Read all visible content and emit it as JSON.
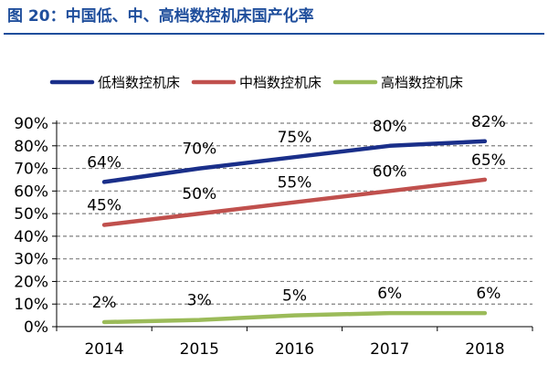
{
  "figure_title": "图 20：中国低、中、高档数控机床国产化率",
  "colors": {
    "title": "#1f4e9c",
    "grid": "#7f7f7f",
    "axis": "#000000"
  },
  "chart_data": {
    "type": "line",
    "title": "",
    "xlabel": "",
    "ylabel": "",
    "categories": [
      "2014",
      "2015",
      "2016",
      "2017",
      "2018"
    ],
    "ylim": [
      0,
      90
    ],
    "yticks": [
      0,
      10,
      20,
      30,
      40,
      50,
      60,
      70,
      80,
      90
    ],
    "ytick_labels": [
      "0%",
      "10%",
      "20%",
      "30%",
      "40%",
      "50%",
      "60%",
      "70%",
      "80%",
      "90%"
    ],
    "grid": true,
    "legend": "top",
    "series": [
      {
        "name": "低档数控机床",
        "values": [
          64,
          70,
          75,
          80,
          82
        ],
        "labels": [
          "64%",
          "70%",
          "75%",
          "80%",
          "82%"
        ],
        "color": "#1a2f8a"
      },
      {
        "name": "中档数控机床",
        "values": [
          45,
          50,
          55,
          60,
          65
        ],
        "labels": [
          "45%",
          "50%",
          "55%",
          "60%",
          "65%"
        ],
        "color": "#c0504d"
      },
      {
        "name": "高档数控机床",
        "values": [
          2,
          3,
          5,
          6,
          6
        ],
        "labels": [
          "2%",
          "3%",
          "5%",
          "6%",
          "6%"
        ],
        "color": "#9bbb59"
      }
    ]
  }
}
